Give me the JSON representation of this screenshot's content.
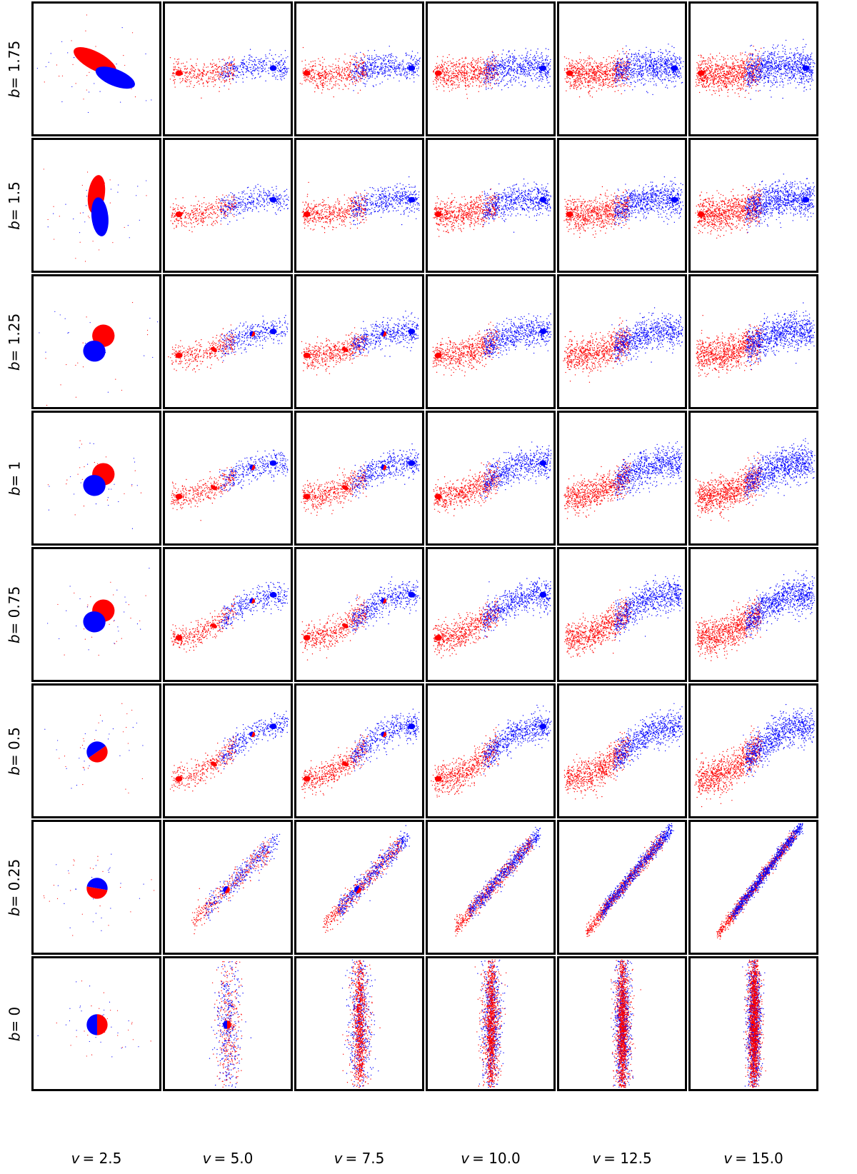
{
  "figure": {
    "row_label_prefix": "b = ",
    "col_label_prefix": "v = ",
    "rows": [
      "1.75",
      "1.5",
      "1.25",
      "1",
      "0.75",
      "0.5",
      "0.25",
      "0"
    ],
    "cols": [
      "2.5",
      "5.0",
      "7.5",
      "10.0",
      "12.5",
      "15.0"
    ],
    "colors": {
      "body_a": "#ff0000",
      "body_b": "#0000ff",
      "frame": "#000000"
    }
  }
}
